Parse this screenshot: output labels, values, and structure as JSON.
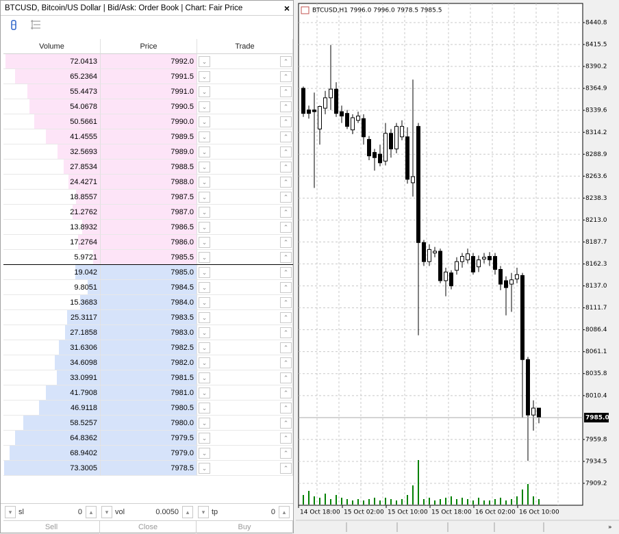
{
  "window": {
    "title": "BTCUSD, Bitcoin/US Dollar | Bid/Ask: Order Book | Chart: Fair Price",
    "close": "×"
  },
  "order_book": {
    "columns": [
      "Volume",
      "Price",
      "Trade"
    ],
    "asks": [
      {
        "volume": 72.0413,
        "price": "7992.0"
      },
      {
        "volume": 65.2364,
        "price": "7991.5"
      },
      {
        "volume": 55.4473,
        "price": "7991.0"
      },
      {
        "volume": 54.0678,
        "price": "7990.5"
      },
      {
        "volume": 50.5661,
        "price": "7990.0"
      },
      {
        "volume": 41.4555,
        "price": "7989.5"
      },
      {
        "volume": 32.5693,
        "price": "7989.0"
      },
      {
        "volume": 27.8534,
        "price": "7988.5"
      },
      {
        "volume": 24.4271,
        "price": "7988.0"
      },
      {
        "volume": 18.8557,
        "price": "7987.5"
      },
      {
        "volume": 21.2762,
        "price": "7987.0"
      },
      {
        "volume": 13.8932,
        "price": "7986.5"
      },
      {
        "volume": 17.2764,
        "price": "7986.0"
      },
      {
        "volume": 5.9721,
        "price": "7985.5"
      }
    ],
    "bids": [
      {
        "volume": 19.042,
        "price": "7985.0"
      },
      {
        "volume": 9.8051,
        "price": "7984.5"
      },
      {
        "volume": 15.3683,
        "price": "7984.0"
      },
      {
        "volume": 25.3117,
        "price": "7983.5"
      },
      {
        "volume": 27.1858,
        "price": "7983.0"
      },
      {
        "volume": 31.6306,
        "price": "7982.5"
      },
      {
        "volume": 34.6098,
        "price": "7982.0"
      },
      {
        "volume": 33.0991,
        "price": "7981.5"
      },
      {
        "volume": 41.7908,
        "price": "7981.0"
      },
      {
        "volume": 46.9118,
        "price": "7980.5"
      },
      {
        "volume": 58.5257,
        "price": "7980.0"
      },
      {
        "volume": 64.8362,
        "price": "7979.5"
      },
      {
        "volume": 68.9402,
        "price": "7979.0"
      },
      {
        "volume": 73.3005,
        "price": "7978.5"
      }
    ],
    "ask_color": "#fde4f7",
    "bid_color": "#d6e3fa"
  },
  "controls": {
    "fields": [
      {
        "label": "sl",
        "value": "0"
      },
      {
        "label": "vol",
        "value": "0.0050"
      },
      {
        "label": "tp",
        "value": "0"
      }
    ],
    "buttons": [
      "Sell",
      "Close",
      "Buy"
    ]
  },
  "chart": {
    "title": "BTCUSD,H1  7996.0 7996.0 7978.5 7985.5",
    "ylim": [
      7883.9,
      8462.9
    ],
    "yticks": [
      8440.8,
      8415.5,
      8390.2,
      8364.9,
      8339.6,
      8314.2,
      8288.9,
      8263.6,
      8238.3,
      {
        "value": 8213,
        "label": "8213.0"
      },
      8187.7,
      8162.3,
      {
        "value": 8137,
        "label": "8137.0"
      },
      8111.7,
      8086.4,
      8061.1,
      8035.8,
      8010.4,
      7959.8,
      7934.5,
      7909.2
    ],
    "current_price": {
      "value": 7985,
      "label": "7985.0"
    },
    "xlabels": [
      "14 Oct 18:00",
      "15 Oct 02:00",
      "15 Oct 10:00",
      "15 Oct 18:00",
      "16 Oct 02:00",
      "16 Oct 10:00"
    ],
    "open": [
      8365,
      8340,
      8340,
      8318,
      8342,
      8354,
      8364,
      8338,
      8336,
      8317,
      8328,
      8330,
      8306,
      8291,
      8289,
      8281,
      8313,
      8295,
      8309,
      8309,
      8256,
      8321,
      8187,
      8165,
      8175,
      8177,
      8143,
      8152,
      8155,
      8165,
      8167,
      8171,
      8159,
      8168,
      8171,
      8171,
      8156,
      8143,
      8139,
      8145,
      8149,
      8052,
      7988,
      7996
    ],
    "high": [
      8367,
      8345,
      8360,
      8345,
      8362,
      8415,
      8372,
      8345,
      8340,
      8335,
      8338,
      8335,
      8310,
      8295,
      8300,
      8325,
      8318,
      8325,
      8328,
      8320,
      8375,
      8325,
      8190,
      8185,
      8182,
      8180,
      8158,
      8155,
      8170,
      8175,
      8180,
      8175,
      8172,
      8175,
      8176,
      8175,
      8160,
      8148,
      8152,
      8158,
      8152,
      8055,
      8005,
      7996
    ],
    "low": [
      8332,
      8330,
      8250,
      8300,
      8335,
      8340,
      8332,
      8325,
      8318,
      8312,
      8325,
      8300,
      8282,
      8270,
      8275,
      8276,
      8285,
      8290,
      8305,
      8255,
      8240,
      8080,
      8160,
      8160,
      8170,
      8140,
      8125,
      8133,
      8150,
      8158,
      8163,
      8150,
      8153,
      8163,
      8160,
      8150,
      8132,
      8103,
      8107,
      8140,
      7985,
      7935,
      7970,
      7978.5
    ],
    "close": [
      8336,
      8336,
      8338,
      8344,
      8354,
      8364,
      8336,
      8333,
      8321,
      8331,
      8333,
      8309,
      8287,
      8285,
      8279,
      8313,
      8295,
      8321,
      8321,
      8260,
      8263,
      8187,
      8165,
      8179,
      8177,
      8143,
      8153,
      8137,
      8165,
      8171,
      8174,
      8153,
      8167,
      8170,
      8167,
      8156,
      8139,
      8135,
      8144,
      8150,
      8052,
      7988,
      7996,
      7985.5
    ],
    "volume": [
      14,
      20,
      12,
      10,
      16,
      8,
      14,
      10,
      8,
      6,
      8,
      6,
      8,
      10,
      6,
      10,
      8,
      6,
      8,
      14,
      28,
      65,
      8,
      10,
      6,
      8,
      10,
      12,
      8,
      10,
      8,
      6,
      10,
      6,
      6,
      8,
      10,
      6,
      8,
      12,
      22,
      30,
      12,
      8
    ],
    "bull_color": "#ffffff",
    "bear_color": "#000000",
    "volume_color": "#008000",
    "more": "»"
  }
}
